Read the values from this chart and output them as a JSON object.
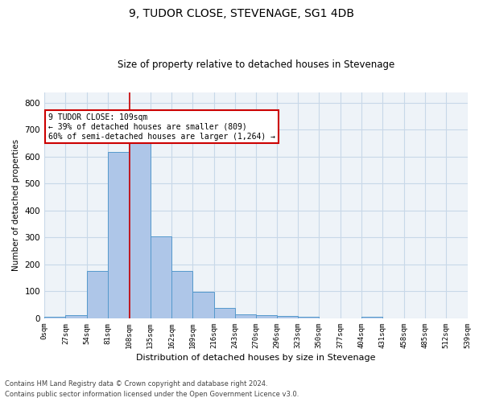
{
  "title": "9, TUDOR CLOSE, STEVENAGE, SG1 4DB",
  "subtitle": "Size of property relative to detached houses in Stevenage",
  "xlabel": "Distribution of detached houses by size in Stevenage",
  "ylabel": "Number of detached properties",
  "footer_line1": "Contains HM Land Registry data © Crown copyright and database right 2024.",
  "footer_line2": "Contains public sector information licensed under the Open Government Licence v3.0.",
  "annotation_title": "9 TUDOR CLOSE: 109sqm",
  "annotation_line1": "← 39% of detached houses are smaller (809)",
  "annotation_line2": "60% of semi-detached houses are larger (1,264) →",
  "property_size_sqm": 109,
  "bar_edges": [
    0,
    27,
    54,
    81,
    108,
    135,
    162,
    189,
    216,
    243,
    270,
    296,
    323,
    350,
    377,
    404,
    431,
    458,
    485,
    512,
    539
  ],
  "bar_values": [
    5,
    13,
    175,
    618,
    655,
    305,
    175,
    97,
    40,
    15,
    12,
    10,
    5,
    0,
    0,
    5,
    0,
    0,
    0,
    0
  ],
  "bar_color": "#aec6e8",
  "bar_edge_color": "#5599cc",
  "vline_color": "#cc0000",
  "vline_x": 109,
  "annotation_box_color": "#cc0000",
  "grid_color": "#c8d8e8",
  "bg_color": "#eef3f8",
  "ylim": [
    0,
    840
  ],
  "yticks": [
    0,
    100,
    200,
    300,
    400,
    500,
    600,
    700,
    800
  ],
  "figsize": [
    6.0,
    5.0
  ],
  "dpi": 100
}
